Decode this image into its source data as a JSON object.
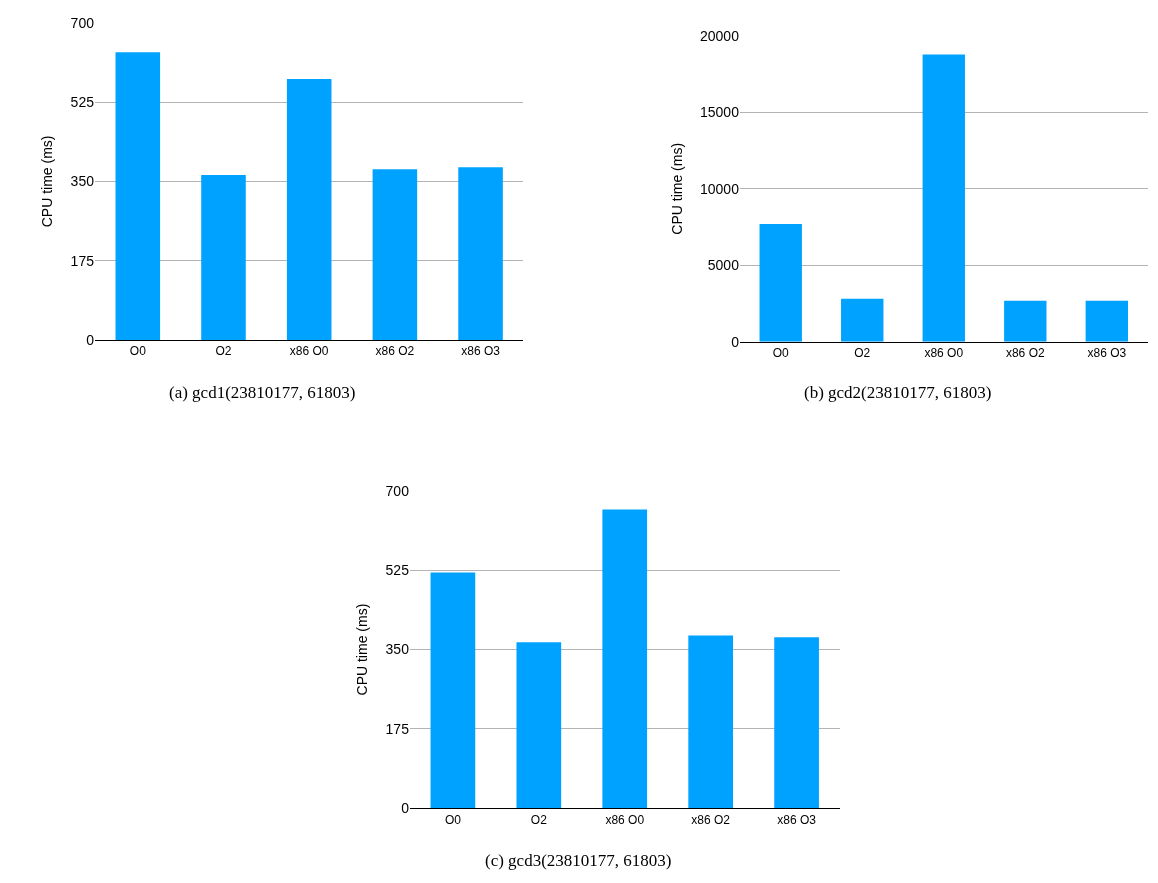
{
  "chart_data": [
    {
      "type": "bar",
      "categories": [
        "O0",
        "O2",
        "x86 O0",
        "x86 O2",
        "x86 O3"
      ],
      "values": [
        635,
        364,
        576,
        377,
        381
      ],
      "color": "#00a2ff",
      "ylabel": "CPU time (ms)",
      "ylim": [
        0,
        700
      ],
      "yticks": [
        0,
        175,
        350,
        525,
        700
      ],
      "grid": "y",
      "annotations": [
        "(a) gcd1(23810177, 61803)"
      ]
    },
    {
      "type": "bar",
      "categories": [
        "O0",
        "O2",
        "x86 O0",
        "x86 O2",
        "x86 O3"
      ],
      "values": [
        7690,
        2820,
        18780,
        2690,
        2690
      ],
      "color": "#00a2ff",
      "ylabel": "CPU time (ms)",
      "ylim": [
        0,
        20000
      ],
      "yticks": [
        0,
        5000,
        10000,
        15000,
        20000
      ],
      "grid": "y",
      "annotations": [
        "(b) gcd2(23810177, 61803)"
      ]
    },
    {
      "type": "bar",
      "categories": [
        "O0",
        "O2",
        "x86 O0",
        "x86 O2",
        "x86 O3"
      ],
      "values": [
        520,
        366,
        659,
        381,
        377
      ],
      "color": "#00a2ff",
      "ylabel": "CPU time (ms)",
      "ylim": [
        0,
        700
      ],
      "yticks": [
        0,
        175,
        350,
        525,
        700
      ],
      "grid": "y",
      "annotations": [
        "(c) gcd3(23810177, 61803)"
      ]
    }
  ]
}
